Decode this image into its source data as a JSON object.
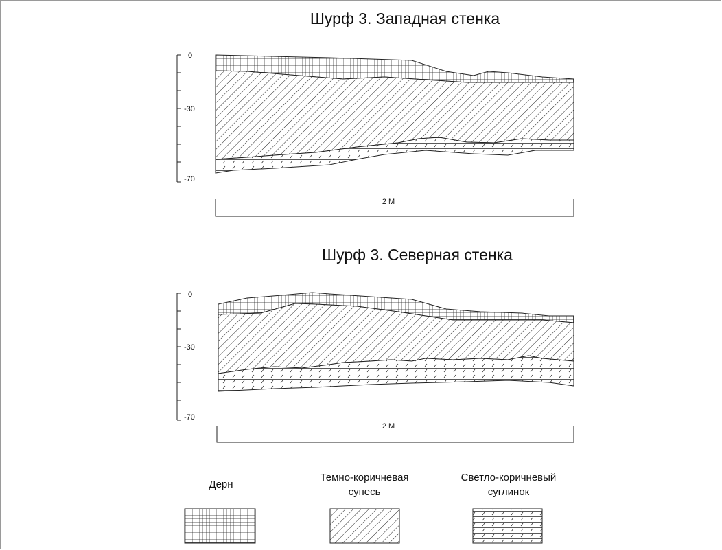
{
  "sections": [
    {
      "title": "Шурф 3. Западная стенка",
      "depth_ticks": [
        "0",
        "-30",
        "-70"
      ],
      "scale_label": "2 М"
    },
    {
      "title": "Шурф 3. Северная стенка",
      "depth_ticks": [
        "0",
        "-30",
        "-70"
      ],
      "scale_label": "2 М"
    }
  ],
  "legend": {
    "items": [
      {
        "label_lines": [
          "Дерн"
        ],
        "pattern": "grid"
      },
      {
        "label_lines": [
          "Темно-коричневая",
          "супесь"
        ],
        "pattern": "diagonal"
      },
      {
        "label_lines": [
          "Светло-коричневый",
          "суглинок"
        ],
        "pattern": "dashed-lines"
      }
    ]
  },
  "colors": {
    "stroke": "#222222",
    "background": "#ffffff",
    "frame": "#9a9a9a"
  }
}
